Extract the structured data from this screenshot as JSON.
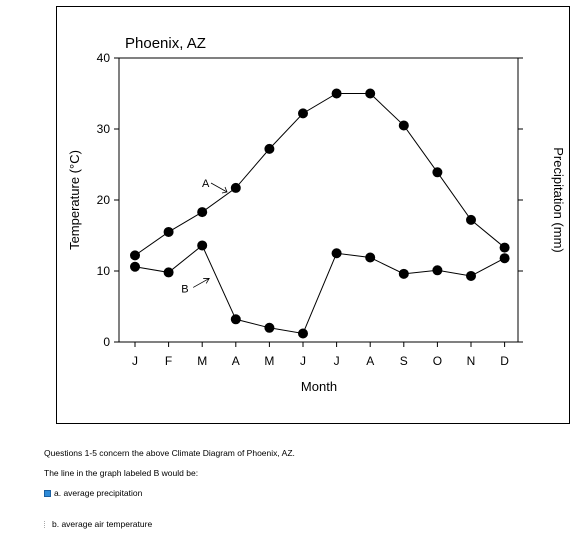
{
  "chart_data": {
    "type": "line",
    "title": "Phoenix, AZ",
    "xlabel": "Month",
    "ylabel_left": "Temperature (°C)",
    "ylabel_right": "Precipitation (mm)",
    "categories": [
      "J",
      "F",
      "M",
      "A",
      "M",
      "J",
      "J",
      "A",
      "S",
      "O",
      "N",
      "D"
    ],
    "ylim": [
      0,
      40
    ],
    "yticks": [
      0,
      10,
      20,
      30,
      40
    ],
    "grid": false,
    "series": [
      {
        "name": "A",
        "values": [
          12.2,
          15.5,
          18.3,
          21.7,
          27.2,
          32.2,
          35.0,
          35.0,
          30.5,
          23.9,
          17.2,
          13.3
        ]
      },
      {
        "name": "B",
        "values": [
          10.6,
          9.8,
          13.6,
          3.2,
          2.0,
          1.2,
          12.5,
          11.9,
          9.6,
          10.1,
          9.3,
          11.8
        ]
      }
    ]
  },
  "questions": {
    "intro": "Questions 1-5 concern the above Climate Diagram of Phoenix, AZ.",
    "prompt": "The line in the graph labeled B would be:",
    "options": [
      {
        "label": "a. average precipitation",
        "selected": true
      },
      {
        "label": "b. average air temperature",
        "selected": false
      }
    ]
  }
}
